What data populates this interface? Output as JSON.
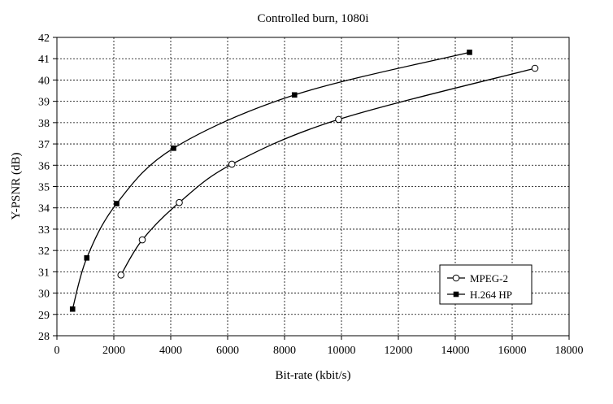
{
  "chart_data": {
    "type": "line",
    "title": "Controlled burn, 1080i",
    "xlabel": "Bit-rate (kbit/s)",
    "ylabel": "Y-PSNR (dB)",
    "xlim": [
      0,
      18000
    ],
    "ylim": [
      28,
      42
    ],
    "x_ticks": [
      "0",
      "2000",
      "4000",
      "6000",
      "8000",
      "10000",
      "12000",
      "14000",
      "16000",
      "18000"
    ],
    "y_ticks": [
      "28",
      "29",
      "30",
      "31",
      "32",
      "33",
      "34",
      "35",
      "36",
      "37",
      "38",
      "39",
      "40",
      "41",
      "42"
    ],
    "grid": true,
    "legend_position": "bottom-right",
    "series": [
      {
        "name": "MPEG-2",
        "marker": "open-circle",
        "x": [
          2250,
          3000,
          4300,
          6150,
          9900,
          16800
        ],
        "y": [
          30.85,
          32.5,
          34.25,
          36.05,
          38.15,
          40.55
        ]
      },
      {
        "name": "H.264 HP",
        "marker": "filled-square",
        "x": [
          550,
          1050,
          2100,
          4100,
          8350,
          14500
        ],
        "y": [
          29.25,
          31.65,
          34.2,
          36.8,
          39.3,
          41.3
        ]
      }
    ]
  }
}
